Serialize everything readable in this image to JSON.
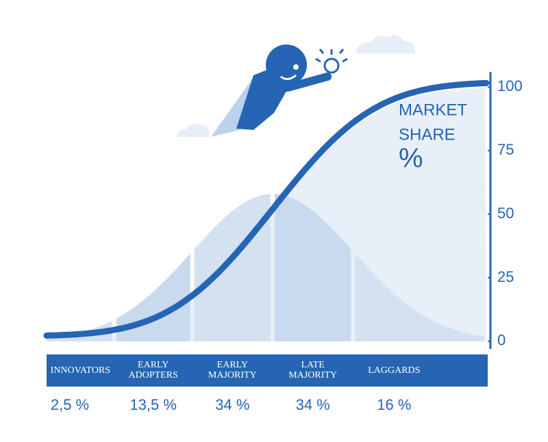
{
  "chart_data": {
    "type": "adoption",
    "y_label": [
      "MARKET",
      "SHARE",
      "%"
    ],
    "categories": [
      "INNOVATORS",
      "EARLY ADOPTERS",
      "EARLY MAJORITY",
      "LATE MAJORITY",
      "LAGGARDS"
    ],
    "values": [
      2.5,
      13.5,
      34,
      34,
      16
    ],
    "value_labels": [
      "2,5 %",
      "13,5 %",
      "34 %",
      "34 %",
      "16 %"
    ],
    "color": "#2565b3",
    "ylim": [
      -3,
      106
    ],
    "yticks": [
      0,
      25,
      50,
      75,
      100
    ]
  }
}
